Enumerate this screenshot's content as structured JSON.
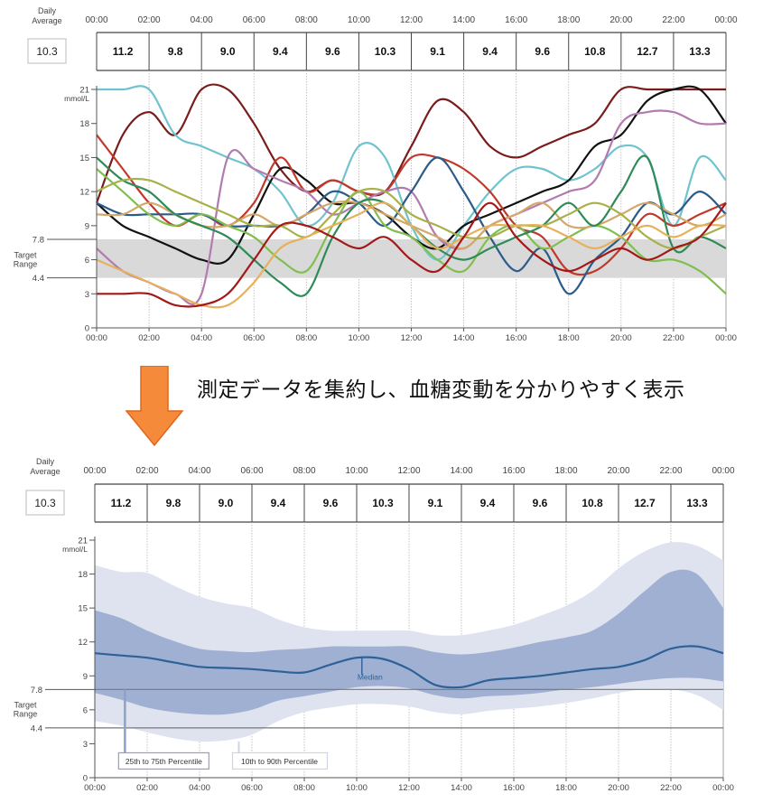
{
  "caption": "測定データを集約し、血糖変動を分かりやすく表示",
  "colors": {
    "arrow": "#f58a3a",
    "band_outer": "#dfe3ef",
    "band_inner": "#a0b0d2",
    "median": "#2d6198",
    "target_band": "#d9d9d9"
  },
  "chart_data": [
    {
      "type": "line",
      "panel": "top",
      "daily_average_label": [
        "Daily",
        "Average"
      ],
      "daily_average": "10.3",
      "time_labels": [
        "00:00",
        "02:00",
        "04:00",
        "06:00",
        "08:00",
        "10:00",
        "12:00",
        "14:00",
        "16:00",
        "18:00",
        "20:00",
        "22:00",
        "00:00"
      ],
      "interval_averages": [
        "11.2",
        "9.8",
        "9.0",
        "9.4",
        "9.6",
        "10.3",
        "9.1",
        "9.4",
        "9.6",
        "10.8",
        "12.7",
        "13.3"
      ],
      "y_ticks": [
        "0",
        "3",
        "6",
        "9",
        "12",
        "15",
        "18",
        "21"
      ],
      "y_unit": "mmol/L",
      "ylim": [
        0,
        21
      ],
      "target_range": {
        "label": [
          "Target",
          "Range"
        ],
        "low": 4.4,
        "high": 7.8,
        "low_label": "4.4",
        "high_label": "7.8"
      },
      "x_hours": [
        0,
        1,
        2,
        3,
        4,
        5,
        6,
        7,
        8,
        9,
        10,
        11,
        12,
        13,
        14,
        15,
        16,
        17,
        18,
        19,
        20,
        21,
        22,
        23,
        24
      ],
      "series": [
        {
          "color": "#7b1c1c",
          "values": [
            11,
            17,
            19,
            17,
            21,
            21,
            18,
            14,
            12,
            13,
            12,
            12,
            16,
            20,
            19,
            16,
            15,
            16,
            17,
            18,
            21,
            21,
            21,
            21,
            21
          ]
        },
        {
          "color": "#6fc3cf",
          "values": [
            21,
            21,
            21,
            17,
            16,
            15,
            14,
            12,
            9,
            11,
            16,
            15,
            9,
            6,
            9,
            12,
            14,
            14,
            13,
            14,
            16,
            15,
            9,
            15,
            13
          ]
        },
        {
          "color": "#111111",
          "values": [
            11,
            9,
            8,
            7,
            6,
            6,
            10,
            14,
            13,
            11,
            11,
            10,
            8,
            7,
            9,
            10,
            11,
            12,
            13,
            16,
            17,
            20,
            21,
            21,
            18
          ]
        },
        {
          "color": "#c0392b",
          "values": [
            17,
            14,
            11,
            9,
            10,
            9,
            11,
            15,
            12,
            13,
            12,
            12,
            15,
            15,
            14,
            12,
            9,
            8,
            5,
            5,
            7,
            10,
            9,
            10,
            11
          ]
        },
        {
          "color": "#b27bb0",
          "values": [
            7,
            5,
            4,
            3,
            3,
            15,
            14,
            13,
            12,
            10,
            11,
            12,
            12,
            8,
            7,
            9,
            10,
            11,
            12,
            13,
            18,
            19,
            19,
            18,
            18
          ]
        },
        {
          "color": "#2b5b8a",
          "values": [
            11,
            10,
            10,
            10,
            10,
            9,
            9,
            9,
            10,
            12,
            11,
            9,
            12,
            15,
            12,
            8,
            5,
            7,
            3,
            6,
            8,
            11,
            10,
            12,
            10
          ]
        },
        {
          "color": "#7fbf4f",
          "values": [
            14,
            12,
            10,
            9,
            10,
            9,
            8,
            6,
            5,
            9,
            12,
            9,
            8,
            6,
            5,
            8,
            9,
            7,
            8,
            9,
            8,
            6,
            6,
            5,
            3
          ]
        },
        {
          "color": "#d4a76a",
          "values": [
            10,
            10,
            11,
            10,
            9,
            9,
            10,
            9,
            10,
            11,
            11,
            10,
            9,
            8,
            7,
            9,
            10,
            11,
            9,
            9,
            10,
            11,
            10,
            9,
            10
          ]
        },
        {
          "color": "#2e8b57",
          "values": [
            15,
            13,
            12,
            10,
            9,
            8,
            6,
            4,
            3,
            8,
            11,
            11,
            9,
            7,
            6,
            7,
            8,
            9,
            11,
            9,
            12,
            15,
            7,
            8,
            7
          ]
        },
        {
          "color": "#a8b04a",
          "values": [
            12,
            13,
            13,
            12,
            11,
            10,
            9,
            9,
            8,
            10,
            12,
            12,
            10,
            9,
            8,
            8,
            9,
            9,
            10,
            11,
            10,
            8,
            7,
            8,
            9
          ]
        },
        {
          "color": "#e7b05c",
          "values": [
            6,
            5,
            4,
            3,
            2,
            2,
            4,
            7,
            8,
            9,
            10,
            11,
            9,
            7,
            8,
            9,
            9,
            9,
            8,
            7,
            8,
            9,
            8,
            9,
            9
          ]
        },
        {
          "color": "#a31818",
          "values": [
            3,
            3,
            3,
            2,
            2,
            3,
            6,
            9,
            9,
            8,
            7,
            8,
            6,
            5,
            8,
            11,
            8,
            6,
            5,
            6,
            7,
            6,
            7,
            8,
            11
          ]
        }
      ]
    },
    {
      "type": "area",
      "panel": "bottom",
      "daily_average_label": [
        "Daily",
        "Average"
      ],
      "daily_average": "10.3",
      "time_labels": [
        "00:00",
        "02:00",
        "04:00",
        "06:00",
        "08:00",
        "10:00",
        "12:00",
        "14:00",
        "16:00",
        "18:00",
        "20:00",
        "22:00",
        "00:00"
      ],
      "interval_averages": [
        "11.2",
        "9.8",
        "9.0",
        "9.4",
        "9.6",
        "10.3",
        "9.1",
        "9.4",
        "9.6",
        "10.8",
        "12.7",
        "13.3"
      ],
      "y_ticks": [
        "0",
        "3",
        "6",
        "9",
        "12",
        "15",
        "18",
        "21"
      ],
      "y_unit": "mmol/L",
      "ylim": [
        0,
        21
      ],
      "target_range": {
        "label": [
          "Target",
          "Range"
        ],
        "low": 4.4,
        "high": 7.8,
        "low_label": "4.4",
        "high_label": "7.8"
      },
      "x_hours": [
        0,
        1,
        2,
        3,
        4,
        5,
        6,
        7,
        8,
        9,
        10,
        11,
        12,
        13,
        14,
        15,
        16,
        17,
        18,
        19,
        20,
        21,
        22,
        23,
        24
      ],
      "p10": [
        5.0,
        4.6,
        4.0,
        3.5,
        3.2,
        3.3,
        3.8,
        5.0,
        5.8,
        6.2,
        6.5,
        6.5,
        6.3,
        5.8,
        5.6,
        5.9,
        6.1,
        6.3,
        6.6,
        7.0,
        7.5,
        7.8,
        7.8,
        7.3,
        6.0
      ],
      "p25": [
        7.5,
        6.9,
        6.2,
        5.8,
        5.6,
        5.6,
        6.0,
        6.8,
        7.2,
        7.6,
        8.0,
        8.1,
        7.9,
        7.3,
        7.0,
        7.2,
        7.3,
        7.5,
        7.8,
        8.0,
        8.3,
        8.6,
        8.8,
        8.8,
        8.5
      ],
      "median": [
        11.0,
        10.8,
        10.6,
        10.2,
        9.8,
        9.7,
        9.6,
        9.4,
        9.3,
        10.0,
        10.6,
        10.5,
        9.6,
        8.2,
        8.0,
        8.6,
        8.8,
        9.0,
        9.3,
        9.6,
        9.8,
        10.4,
        11.4,
        11.6,
        11.0
      ],
      "p75": [
        14.8,
        14.1,
        13.0,
        12.1,
        11.4,
        11.2,
        11.1,
        11.3,
        11.4,
        11.6,
        11.6,
        11.6,
        11.6,
        11.1,
        10.9,
        11.1,
        11.5,
        12.0,
        12.4,
        13.0,
        14.5,
        16.5,
        18.2,
        18.0,
        15.0
      ],
      "p90": [
        18.8,
        18.2,
        18.1,
        17.0,
        16.0,
        15.4,
        15.0,
        14.0,
        13.3,
        13.0,
        13.0,
        13.0,
        13.0,
        12.6,
        12.6,
        13.0,
        13.5,
        14.3,
        15.2,
        16.5,
        18.5,
        20.0,
        20.8,
        20.5,
        19.2
      ],
      "labels": {
        "median": "Median",
        "iqr": "25th to 75th Percentile",
        "idr": "10th to 90th Percentile"
      }
    }
  ]
}
